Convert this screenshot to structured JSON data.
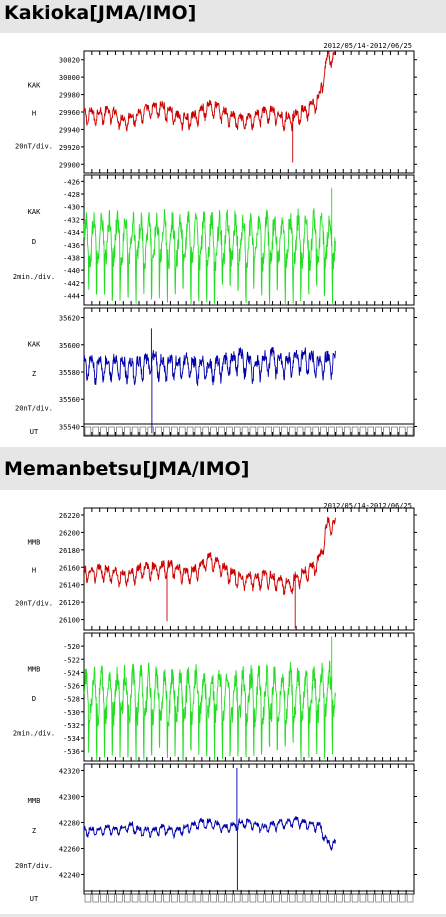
{
  "chart_data": [
    {
      "type": "line",
      "title": "Kakioka[JMA/IMO]",
      "date_range": "2012/05/14-2012/06/25",
      "time_axis_label": "UT",
      "days_with_data": 32,
      "days_total": 42,
      "panels": [
        {
          "station": "KAK",
          "component": "H",
          "scale": "20nT/div.",
          "ylim": [
            29890,
            30030
          ],
          "ticks": [
            29900,
            29920,
            29940,
            29960,
            29980,
            30000,
            30020
          ],
          "baseline": 29958,
          "amplitude": 10,
          "trend": [
            0,
            0,
            0,
            2,
            0,
            -8,
            -4,
            0,
            4,
            6,
            8,
            2,
            -4,
            -6,
            -4,
            4,
            10,
            6,
            0,
            -4,
            -8,
            -6,
            -2,
            2,
            2,
            -4,
            -6,
            -2,
            4,
            8,
            20,
            66
          ],
          "color": "#cc0000",
          "spikes": [
            [
              0.83,
              29902
            ],
            [
              0.33,
              29948
            ]
          ]
        },
        {
          "station": "KAK",
          "component": "D",
          "scale": "2min./div.",
          "ylim": [
            -445.5,
            -425
          ],
          "ticks": [
            -426,
            -428,
            -430,
            -432,
            -434,
            -436,
            -438,
            -440,
            -442,
            -444
          ],
          "baseline": -435.3,
          "amplitude": 4,
          "trend": [
            0,
            0,
            0.2,
            0,
            0.2,
            0,
            -0.2,
            0,
            0,
            0.2,
            0,
            -0.2,
            0,
            0,
            0.2,
            0,
            0.2,
            0,
            0,
            -0.2,
            0,
            0,
            0.2,
            0,
            0,
            0,
            0.2,
            0,
            0,
            0,
            0.2,
            0.4
          ],
          "color": "#22dd22",
          "spikes": [
            [
              0.985,
              -427
            ]
          ]
        },
        {
          "station": "KAK",
          "component": "Z",
          "scale": "20nT/div.",
          "ylim": [
            35533,
            35627
          ],
          "ticks": [
            35620,
            35600,
            35580,
            35560,
            35540
          ],
          "baseline": 35585,
          "amplitude": 10,
          "trend": [
            0,
            0,
            0,
            0,
            2,
            0,
            -2,
            0,
            2,
            4,
            0,
            0,
            0,
            2,
            0,
            0,
            -2,
            0,
            2,
            4,
            6,
            2,
            0,
            4,
            6,
            2,
            2,
            6,
            6,
            4,
            0,
            4
          ],
          "color": "#0000aa",
          "spikes": [
            [
              0.27,
              35535
            ],
            [
              0.268,
              35612
            ]
          ]
        }
      ]
    },
    {
      "type": "line",
      "title": "Memanbetsu[JMA/IMO]",
      "date_range": "2012/05/14-2012/06/25",
      "time_axis_label": "UT",
      "days_with_data": 32,
      "days_total": 42,
      "panels": [
        {
          "station": "MMB",
          "component": "H",
          "scale": "20nT/div.",
          "ylim": [
            26088,
            26228
          ],
          "ticks": [
            26100,
            26120,
            26140,
            26160,
            26180,
            26200,
            26220
          ],
          "baseline": 26155,
          "amplitude": 10,
          "trend": [
            0,
            0,
            2,
            0,
            -2,
            -6,
            -2,
            2,
            4,
            4,
            6,
            6,
            2,
            -2,
            0,
            8,
            16,
            10,
            2,
            -4,
            -8,
            -6,
            -10,
            -4,
            -8,
            -10,
            -16,
            -8,
            -2,
            4,
            14,
            56
          ],
          "color": "#cc0000",
          "spikes": [
            [
              0.84,
              26090
            ],
            [
              0.33,
              26098
            ]
          ]
        },
        {
          "station": "MMB",
          "component": "D",
          "scale": "2min./div.",
          "ylim": [
            -537.5,
            -518
          ],
          "ticks": [
            -520,
            -522,
            -524,
            -526,
            -528,
            -530,
            -532,
            -534,
            -536
          ],
          "baseline": -527.5,
          "amplitude": 4,
          "trend": [
            0,
            0,
            0.2,
            0,
            0,
            0.2,
            0,
            -0.2,
            0,
            0,
            0.2,
            0,
            0,
            -0.2,
            0,
            0.2,
            0,
            0,
            0,
            -0.2,
            0,
            0,
            0.2,
            0,
            0,
            0,
            0.2,
            0,
            0,
            0.2,
            0.2,
            0.4
          ],
          "color": "#22dd22",
          "spikes": [
            [
              0.985,
              -518.5
            ]
          ]
        },
        {
          "station": "MMB",
          "component": "Z",
          "scale": "20nT/div.",
          "ylim": [
            42225,
            42325
          ],
          "ticks": [
            42320,
            42300,
            42280,
            42260,
            42240
          ],
          "baseline": 42274,
          "amplitude": 4,
          "trend": [
            0,
            0,
            0,
            2,
            0,
            2,
            4,
            0,
            0,
            0,
            2,
            0,
            0,
            2,
            4,
            6,
            6,
            4,
            2,
            4,
            6,
            6,
            4,
            2,
            4,
            6,
            6,
            8,
            6,
            4,
            4,
            -10
          ],
          "color": "#0000aa",
          "spikes": [
            [
              0.61,
              42228
            ],
            [
              0.608,
              42322
            ]
          ]
        }
      ]
    }
  ]
}
